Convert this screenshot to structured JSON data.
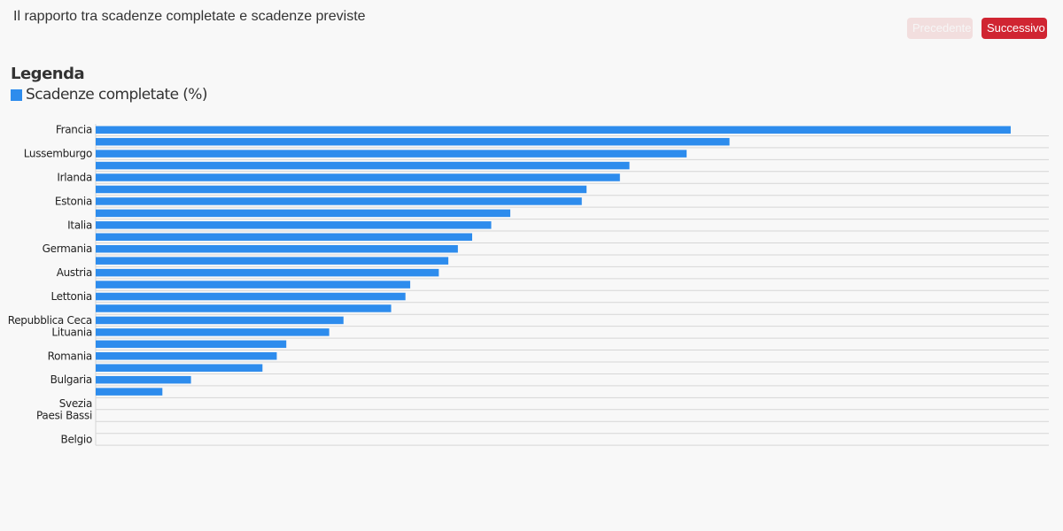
{
  "header": {
    "title": "Il rapporto tra scadenze completate e scadenze previste",
    "prev_label": "Precedente",
    "next_label": "Successivo"
  },
  "legend": {
    "title": "Legenda",
    "item_label": "Scadenze completate (%)"
  },
  "colors": {
    "bar": "#2d8ced",
    "grid": "#d6d6d6",
    "accent": "#d02532",
    "disabled": "#f2dede"
  },
  "chart_data": {
    "type": "bar",
    "orientation": "horizontal",
    "series": [
      {
        "name": "Scadenze completate (%)"
      }
    ],
    "categories": [
      "Francia",
      "",
      "Lussemburgo",
      "",
      "Irlanda",
      "",
      "Estonia",
      "",
      "Italia",
      "",
      "Germania",
      "",
      "Austria",
      "",
      "Lettonia",
      "",
      "Repubblica Ceca",
      "Lituania",
      "",
      "Romania",
      "",
      "Bulgaria",
      "",
      "Svezia",
      "Paesi Bassi",
      "",
      "Belgio"
    ],
    "values": [
      96,
      66.5,
      62,
      56,
      55,
      51.5,
      51,
      43.5,
      41.5,
      39.5,
      38,
      37,
      36,
      33,
      32.5,
      31,
      26,
      24.5,
      20,
      19,
      17.5,
      10,
      7,
      0,
      0,
      0,
      0
    ],
    "xlim": [
      0,
      100
    ],
    "grid": true,
    "legend_position": "top-left"
  }
}
